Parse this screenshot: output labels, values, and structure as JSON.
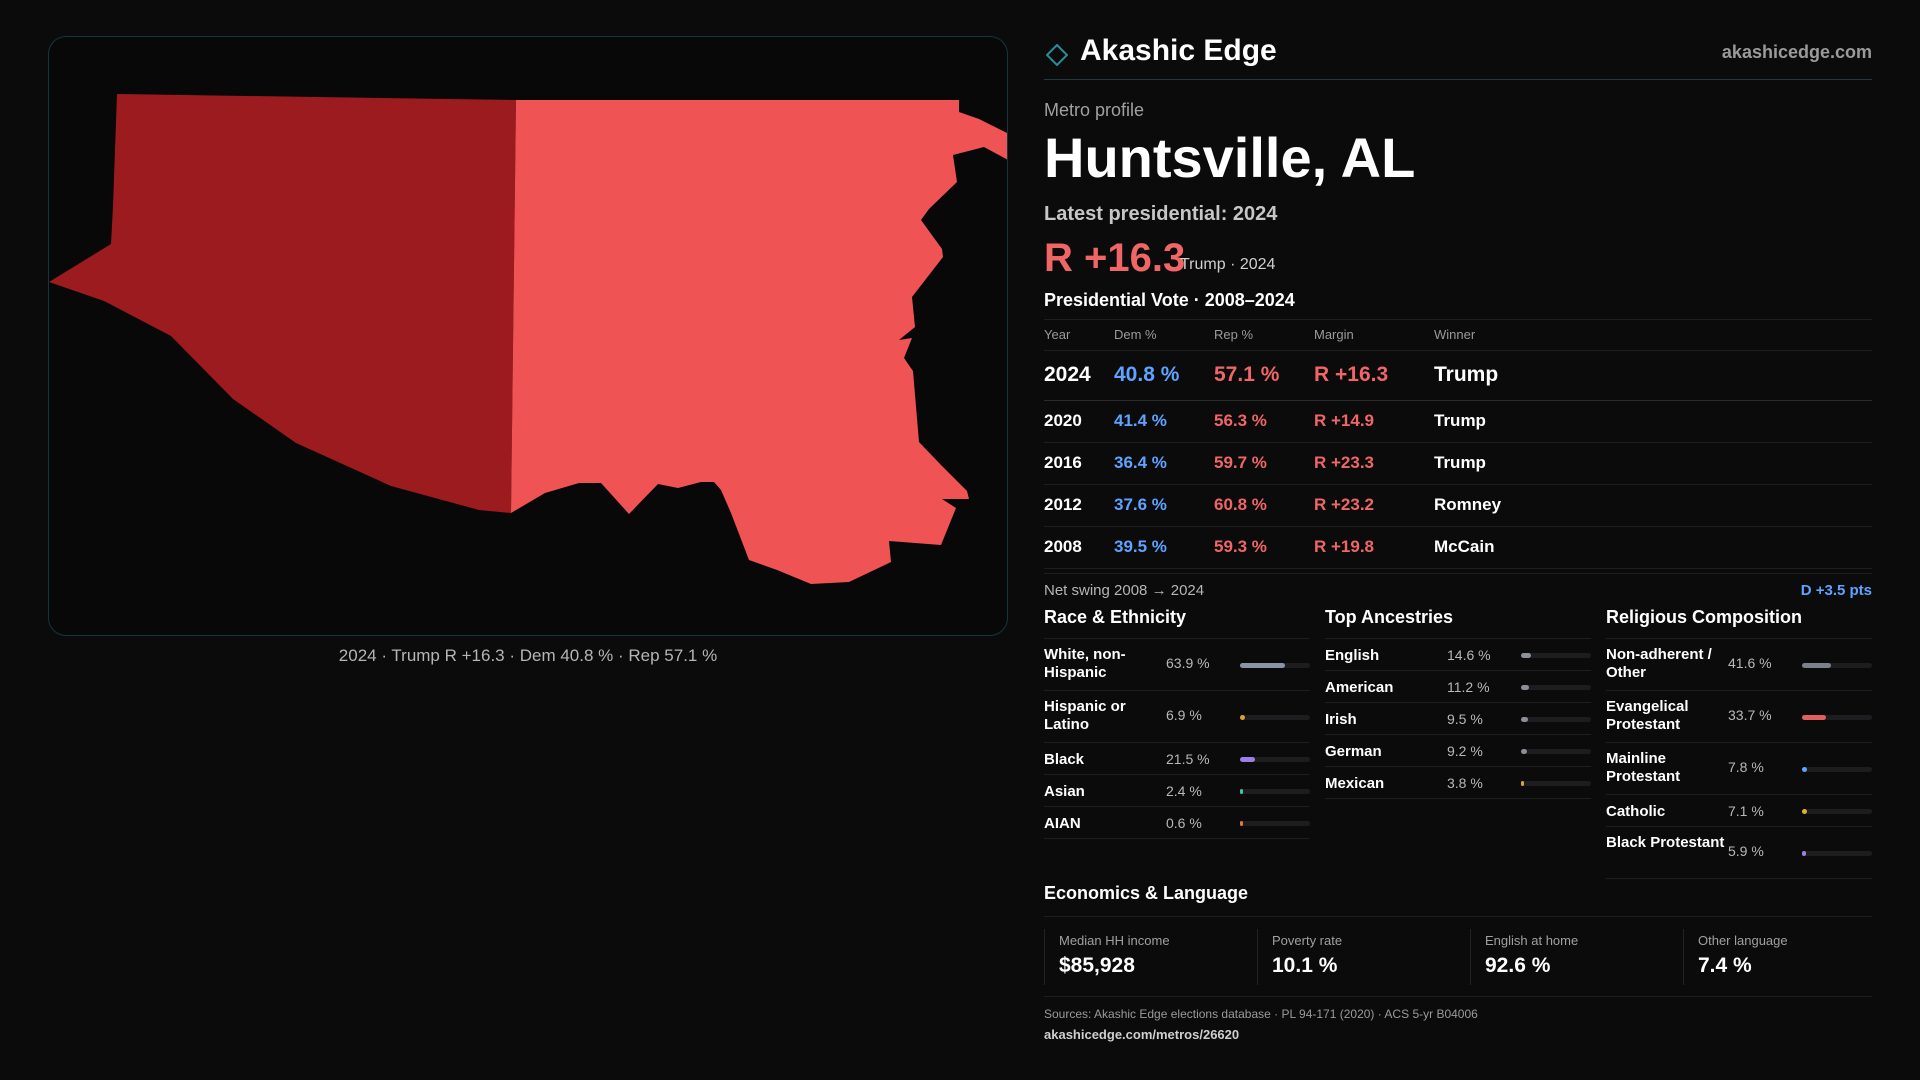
{
  "brand": {
    "name": "Akashic Edge",
    "url": "akashicedge.com"
  },
  "profile": {
    "eyebrow": "Metro profile",
    "title": "Huntsville, AL"
  },
  "latest": {
    "label": "Latest presidential: 2024",
    "margin": "R +16.3",
    "sub": "Trump · 2024"
  },
  "map": {
    "caption": "2024 · Trump R +16.3 · Dem 40.8 % · Rep 57.1 %",
    "colors": {
      "west_county": "#9b1b1e",
      "east_county": "#ef5353",
      "background": "#080809"
    }
  },
  "presidential": {
    "title": "Presidential Vote · 2008–2024",
    "headers": {
      "year": "Year",
      "dem": "Dem %",
      "rep": "Rep %",
      "margin": "Margin",
      "winner": "Winner"
    },
    "rows": [
      {
        "year": "2024",
        "dem": "40.8 %",
        "rep": "57.1 %",
        "margin": "R +16.3",
        "winner": "Trump"
      },
      {
        "year": "2020",
        "dem": "41.4 %",
        "rep": "56.3 %",
        "margin": "R +14.9",
        "winner": "Trump"
      },
      {
        "year": "2016",
        "dem": "36.4 %",
        "rep": "59.7 %",
        "margin": "R +23.3",
        "winner": "Trump"
      },
      {
        "year": "2012",
        "dem": "37.6 %",
        "rep": "60.8 %",
        "margin": "R +23.2",
        "winner": "Romney"
      },
      {
        "year": "2008",
        "dem": "39.5 %",
        "rep": "59.3 %",
        "margin": "R +19.8",
        "winner": "McCain"
      }
    ],
    "swing_label": "Net swing 2008 → 2024",
    "swing_value": "D +3.5 pts"
  },
  "race": {
    "title": "Race & Ethnicity",
    "items": [
      {
        "label": "White, non-Hispanic",
        "value": "63.9 %",
        "pct": 63.9,
        "color": "#8a93a8"
      },
      {
        "label": "Hispanic or Latino",
        "value": "6.9 %",
        "pct": 6.9,
        "color": "#e0a030"
      },
      {
        "label": "Black",
        "value": "21.5 %",
        "pct": 21.5,
        "color": "#9b7fe6"
      },
      {
        "label": "Asian",
        "value": "2.4 %",
        "pct": 2.4,
        "color": "#3fc4a8"
      },
      {
        "label": "AIAN",
        "value": "0.6 %",
        "pct": 0.6,
        "color": "#e07a3a"
      }
    ]
  },
  "ancestry": {
    "title": "Top Ancestries",
    "items": [
      {
        "label": "English",
        "value": "14.6 %",
        "pct": 14.6,
        "color": "#8a8f9a"
      },
      {
        "label": "American",
        "value": "11.2 %",
        "pct": 11.2,
        "color": "#8a8f9a"
      },
      {
        "label": "Irish",
        "value": "9.5 %",
        "pct": 9.5,
        "color": "#8a8f9a"
      },
      {
        "label": "German",
        "value": "9.2 %",
        "pct": 9.2,
        "color": "#8a8f9a"
      },
      {
        "label": "Mexican",
        "value": "3.8 %",
        "pct": 3.8,
        "color": "#e0a030"
      }
    ]
  },
  "religion": {
    "title": "Religious Composition",
    "items": [
      {
        "label": "Non-adherent / Other",
        "value": "41.6 %",
        "pct": 41.6,
        "color": "#7a808c"
      },
      {
        "label": "Evangelical Protestant",
        "value": "33.7 %",
        "pct": 33.7,
        "color": "#e06060"
      },
      {
        "label": "Mainline Protestant",
        "value": "7.8 %",
        "pct": 7.8,
        "color": "#5ea3ff"
      },
      {
        "label": "Catholic",
        "value": "7.1 %",
        "pct": 7.1,
        "color": "#e0b030"
      },
      {
        "label": "Black Protestant",
        "value": "5.9 %",
        "pct": 5.9,
        "color": "#9b7fe6"
      }
    ]
  },
  "economics": {
    "title": "Economics & Language",
    "items": [
      {
        "label": "Median HH income",
        "value": "$85,928"
      },
      {
        "label": "Poverty rate",
        "value": "10.1 %"
      },
      {
        "label": "English at home",
        "value": "92.6 %"
      },
      {
        "label": "Other language",
        "value": "7.4 %"
      }
    ]
  },
  "footer": {
    "sources": "Sources: Akashic Edge elections database · PL 94-171 (2020) · ACS 5-yr B04006",
    "url": "akashicedge.com/metros/26620"
  }
}
